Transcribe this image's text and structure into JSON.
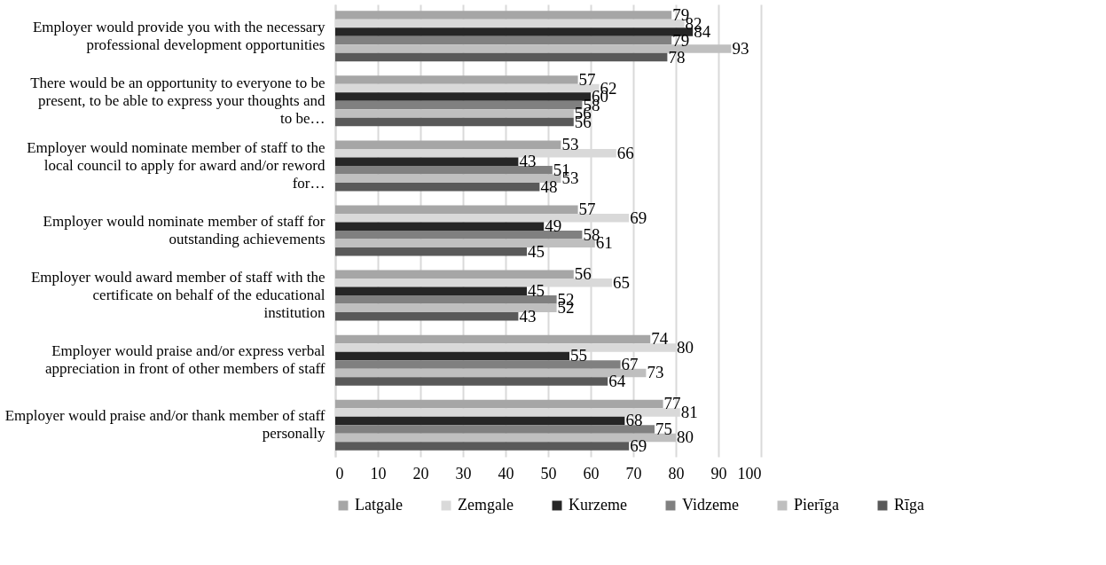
{
  "chart_data": {
    "type": "bar",
    "orientation": "horizontal",
    "categories": [
      "Employer would provide you with the necessary professional development opportunities",
      "There would be an opportunity to everyone to be present, to be able to express your thoughts and to be…",
      "Employer would nominate member of staff to the local council to apply for award and/or reword for…",
      "Employer would nominate member of staff for outstanding achievements",
      "Employer would award member of staff with the certificate on behalf of the educational institution",
      "Employer would praise and/or express verbal appreciation in front of other members of staff",
      "Employer would praise and/or thank member of staff personally"
    ],
    "series": [
      {
        "name": "Latgale",
        "color": "#a6a6a6",
        "values": [
          79,
          57,
          53,
          57,
          56,
          74,
          77
        ]
      },
      {
        "name": "Zemgale",
        "color": "#d9d9d9",
        "values": [
          82,
          62,
          66,
          69,
          65,
          80,
          81
        ]
      },
      {
        "name": "Kurzeme",
        "color": "#262626",
        "values": [
          84,
          60,
          43,
          49,
          45,
          55,
          68
        ]
      },
      {
        "name": "Vidzeme",
        "color": "#808080",
        "values": [
          79,
          58,
          51,
          58,
          52,
          67,
          75
        ]
      },
      {
        "name": "Pierīga",
        "color": "#bfbfbf",
        "values": [
          93,
          56,
          53,
          61,
          52,
          73,
          80
        ]
      },
      {
        "name": "Rīga",
        "color": "#595959",
        "values": [
          78,
          56,
          48,
          45,
          43,
          64,
          69
        ]
      }
    ],
    "xlim": [
      0,
      100
    ],
    "xticks": [
      0,
      10,
      20,
      30,
      40,
      50,
      60,
      70,
      80,
      90,
      100
    ],
    "grid": "x",
    "legend": "bottom",
    "data_labels": true
  }
}
